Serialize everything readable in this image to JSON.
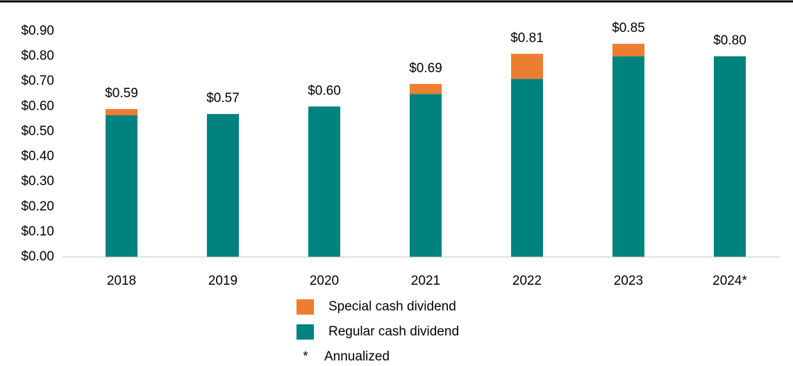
{
  "chart_data": {
    "type": "stacked_bar",
    "categories": [
      "2018",
      "2019",
      "2020",
      "2021",
      "2022",
      "2023",
      "2024*"
    ],
    "series": [
      {
        "name": "Regular cash dividend",
        "color": "#00827f",
        "values": [
          0.565,
          0.57,
          0.6,
          0.65,
          0.71,
          0.8,
          0.8
        ]
      },
      {
        "name": "Special cash dividend",
        "color": "#ed7d31",
        "values": [
          0.025,
          0,
          0,
          0.04,
          0.1,
          0.05,
          0
        ]
      }
    ],
    "totals": [
      0.59,
      0.57,
      0.6,
      0.69,
      0.81,
      0.85,
      0.8
    ],
    "total_labels": [
      "$0.59",
      "$0.57",
      "$0.60",
      "$0.69",
      "$0.81",
      "$0.85",
      "$0.80"
    ],
    "ylim": [
      0,
      0.9
    ],
    "yticks": [
      {
        "value": 0,
        "label": "$0.00"
      },
      {
        "value": 0.1,
        "label": "$0.10"
      },
      {
        "value": 0.2,
        "label": "$0.20"
      },
      {
        "value": 0.3,
        "label": "$0.30"
      },
      {
        "value": 0.4,
        "label": "$0.40"
      },
      {
        "value": 0.5,
        "label": "$0.50"
      },
      {
        "value": 0.6,
        "label": "$0.60"
      },
      {
        "value": 0.7,
        "label": "$0.70"
      },
      {
        "value": 0.8,
        "label": "$0.80"
      },
      {
        "value": 0.9,
        "label": "$0.90"
      }
    ],
    "grid": false,
    "note_symbol": "*",
    "note": "Annualized"
  }
}
